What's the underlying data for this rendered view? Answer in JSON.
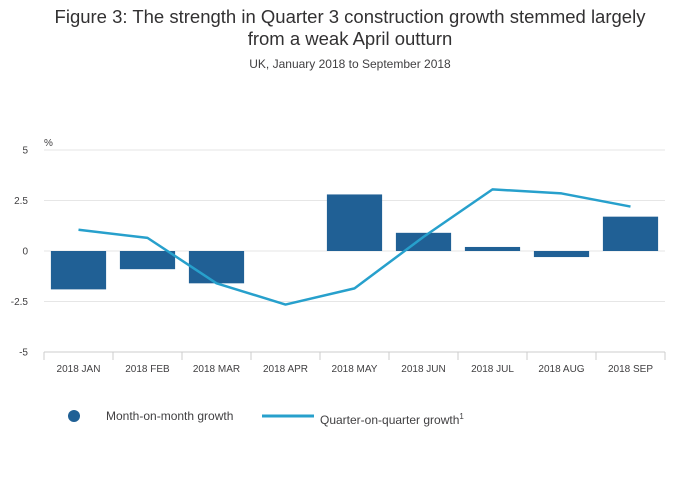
{
  "title_line1": "Figure 3: The strength in Quarter 3 construction growth stemmed largely",
  "title_line2": "from a weak April outturn",
  "subtitle": "UK, January 2018 to September 2018",
  "colors": {
    "bar": "#206095",
    "line": "#27a0cc",
    "grid": "#e6e6e6",
    "axis": "#cccccc"
  },
  "chart_data": {
    "type": "bar",
    "ylabel": "%",
    "ylim": [
      -5,
      5
    ],
    "yticks": [
      5,
      2.5,
      0,
      -2.5,
      -5
    ],
    "ytick_labels": [
      "5",
      "2.5",
      "0",
      "-2.5",
      "-5"
    ],
    "categories": [
      "2018 JAN",
      "2018 FEB",
      "2018 MAR",
      "2018 APR",
      "2018 MAY",
      "2018 JUN",
      "2018 JUL",
      "2018 AUG",
      "2018 SEP"
    ],
    "series": [
      {
        "name": "Month-on-month growth",
        "type": "bar",
        "values": [
          -1.9,
          -0.9,
          -1.6,
          0.0,
          2.8,
          0.9,
          0.2,
          -0.3,
          1.7
        ]
      },
      {
        "name": "Quarter-on-quarter growth",
        "type": "line",
        "superscript": "1",
        "values": [
          1.05,
          0.65,
          -1.6,
          -2.65,
          -1.85,
          0.7,
          3.05,
          2.85,
          2.2
        ]
      }
    ],
    "legend_position": "bottom-left"
  }
}
